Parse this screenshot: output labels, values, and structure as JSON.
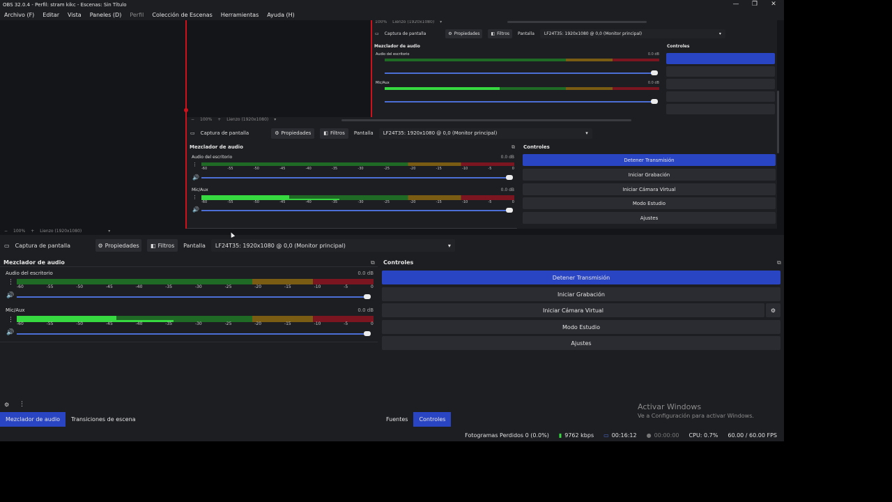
{
  "window": {
    "title": "OBS 32.0.4 - Perfil: stram kikc - Escenas: Sin Título",
    "controls": {
      "minimize": "—",
      "maximize": "❐",
      "close": "✕"
    }
  },
  "menu": [
    {
      "label": "Archivo (F)",
      "dim": false
    },
    {
      "label": "Editar",
      "dim": false
    },
    {
      "label": "Vista",
      "dim": false
    },
    {
      "label": "Paneles (D)",
      "dim": false
    },
    {
      "label": "Perfil",
      "dim": true
    },
    {
      "label": "Colección de Escenas",
      "dim": false
    },
    {
      "label": "Herramientas",
      "dim": false
    },
    {
      "label": "Ayuda (H)",
      "dim": false
    }
  ],
  "zoom": {
    "minus": "−",
    "level": "100%",
    "plus": "+",
    "canvas": "Lienzo (1920x1080)"
  },
  "source_bar": {
    "source_name": "Captura de pantalla",
    "properties": "Propiedades",
    "filters": "Filtros",
    "display_label": "Pantalla",
    "display_value": "LF24T35: 1920x1080 @ 0,0 (Monitor principal)"
  },
  "mixer": {
    "title": "Mezclador de audio",
    "ticks": [
      "-60",
      "-55",
      "-50",
      "-45",
      "-40",
      "-35",
      "-30",
      "-25",
      "-20",
      "-15",
      "-10",
      "-5",
      "0"
    ],
    "tracks": [
      {
        "name": "Audio del escritorio",
        "db": "0.0 dB",
        "level": 0.0,
        "level2": 0.0
      },
      {
        "name": "Mic/Aux",
        "db": "0.0 dB",
        "level": 0.28,
        "level2": 0.44
      }
    ]
  },
  "controls": {
    "title": "Controles",
    "buttons": [
      "Detener Transmisión",
      "Iniciar Grabación",
      "Iniciar Cámara Virtual",
      "Modo Estudio",
      "Ajustes"
    ]
  },
  "bottom_tabs_left": [
    {
      "label": "Mezclador de audio",
      "active": true
    },
    {
      "label": "Transiciones de escena",
      "active": false
    }
  ],
  "bottom_tabs_right": [
    {
      "label": "Fuentes",
      "active": false
    },
    {
      "label": "Controles",
      "active": true
    }
  ],
  "status": {
    "dropped": "Fotogramas Perdidos 0 (0.0%)",
    "bitrate": "9762 kbps",
    "stream_time": "00:16:12",
    "rec_time": "00:00:00",
    "cpu": "CPU: 0.7%",
    "fps": "60.00 / 60.00 FPS"
  },
  "watermark": {
    "line1": "Activar Windows",
    "line2": "Ve a Configuración para activar Windows."
  },
  "colors": {
    "accent": "#2a45c4",
    "live": "#d0101a",
    "meter_green": "#36d93f"
  }
}
